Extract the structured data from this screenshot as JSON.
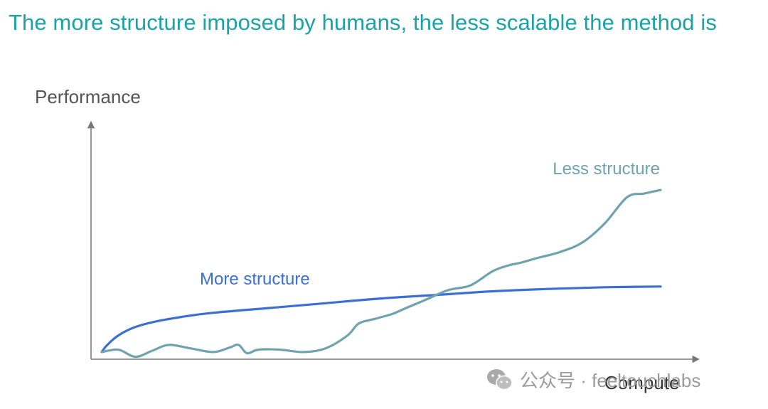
{
  "title": "The more structure imposed by humans, the less scalable the method is",
  "watermark": {
    "text": "公众号 · feeltouchlabs",
    "icon": "wechat-icon"
  },
  "chart_data": {
    "type": "line",
    "ylabel": "Performance",
    "xlabel": "Compute",
    "grid": false,
    "x_ticks": false,
    "y_ticks": false,
    "xlim": [
      0,
      100
    ],
    "ylim": [
      0,
      100
    ],
    "series": [
      {
        "name": "More structure",
        "color": "#3b6fd1",
        "x": [
          0,
          1,
          3,
          6,
          10,
          15,
          20,
          30,
          40,
          50,
          60,
          70,
          80,
          90,
          100
        ],
        "y": [
          3,
          6,
          10,
          13.5,
          16,
          18,
          19.5,
          21.5,
          23.5,
          25.5,
          27,
          28.5,
          29.5,
          30.2,
          30.5
        ]
      },
      {
        "name": "Less structure",
        "color": "#6fa3ad",
        "x": [
          0,
          3,
          6,
          9,
          12,
          16,
          20,
          23,
          24.5,
          26,
          28,
          32,
          36,
          40,
          44,
          46,
          49,
          52,
          54,
          58,
          62,
          66,
          70,
          73,
          75,
          78,
          82,
          86,
          90,
          94,
          97,
          100
        ],
        "y": [
          3,
          4,
          1,
          3.5,
          6,
          4.5,
          3,
          5,
          6,
          2.5,
          4,
          4,
          3,
          4.5,
          10,
          15,
          17,
          19,
          21,
          25,
          29,
          31,
          37,
          39.5,
          40.5,
          42.5,
          45,
          49,
          57,
          68,
          69.5,
          71
        ]
      }
    ]
  },
  "palette": {
    "title": "#19a3a6",
    "axis": "#777777",
    "label": "#555555"
  }
}
